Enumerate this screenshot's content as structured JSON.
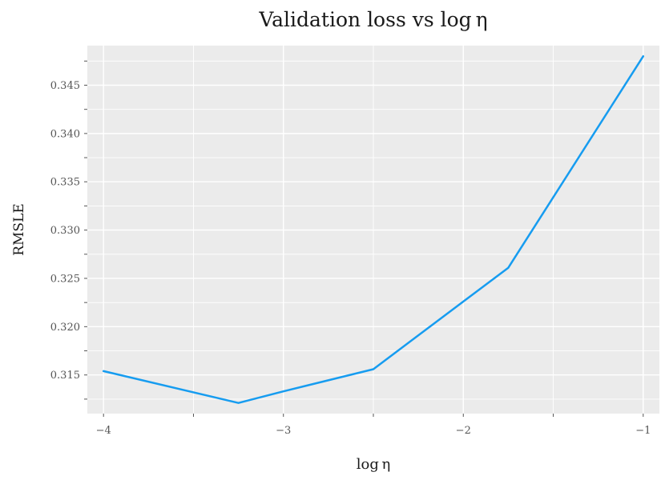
{
  "figure": {
    "title": "Validation loss vs log η",
    "xlabel": "log η",
    "ylabel": "RMSLE"
  },
  "chart_data": {
    "type": "line",
    "title": "Validation loss vs log η",
    "xlabel": "log η",
    "ylabel": "RMSLE",
    "x": [
      -4,
      -3.25,
      -3,
      -2.5,
      -2,
      -1.75,
      -1
    ],
    "y": [
      0.3154,
      0.3121,
      0.3133,
      0.3156,
      0.3226,
      0.3261,
      0.348
    ],
    "xlim": [
      -4.09,
      -0.91
    ],
    "ylim": [
      0.311,
      0.3491
    ],
    "x_major_ticks": [
      -4,
      -3,
      -2,
      -1
    ],
    "x_major_labels": [
      "−4",
      "−3",
      "−2",
      "−1"
    ],
    "x_minor_ticks": [
      -3.5,
      -2.5,
      -1.5
    ],
    "y_major_ticks": [
      0.315,
      0.32,
      0.325,
      0.33,
      0.335,
      0.34,
      0.345
    ],
    "y_major_labels": [
      "0.315",
      "0.320",
      "0.325",
      "0.330",
      "0.335",
      "0.340",
      "0.345"
    ],
    "y_minor_ticks": [
      0.3125,
      0.3175,
      0.3225,
      0.3275,
      0.3325,
      0.3375,
      0.3425,
      0.3475
    ],
    "grid": true,
    "legend_position": "none",
    "colors": {
      "line": "#169CF0",
      "panel_bg": "#EBEBEB",
      "grid": "#FFFFFF",
      "tick": "#555555",
      "tick_label": "#555555",
      "title_text": "#1a1a1a"
    }
  }
}
